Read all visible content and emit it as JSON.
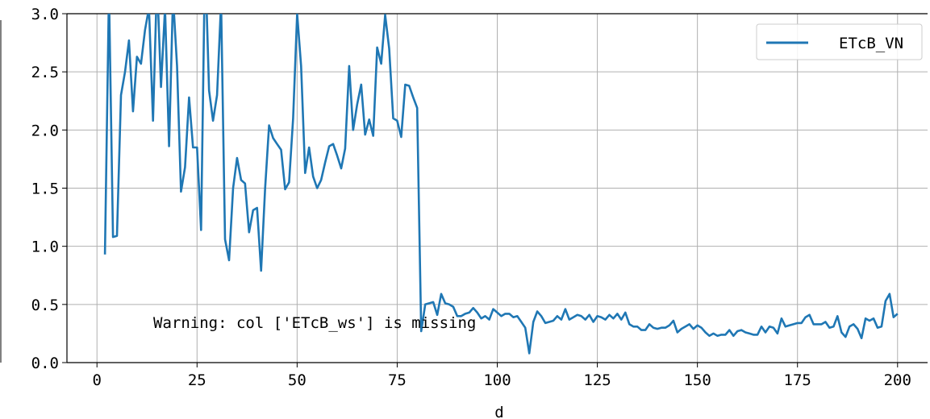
{
  "chart_data": {
    "type": "line",
    "title": "",
    "xlabel": "d",
    "ylabel": "",
    "xlim": [
      -7.5,
      207.5
    ],
    "ylim": [
      0,
      3.0
    ],
    "x_ticks": [
      0,
      25,
      50,
      75,
      100,
      125,
      150,
      175,
      200
    ],
    "x_tick_labels": [
      "0",
      "25",
      "50",
      "75",
      "100",
      "125",
      "150",
      "175",
      "200"
    ],
    "y_ticks": [
      0.0,
      0.5,
      1.0,
      1.5,
      2.0,
      2.5,
      3.0
    ],
    "y_tick_labels": [
      "0.0",
      "0.5",
      "1.0",
      "1.5",
      "2.0",
      "2.5",
      "3.0"
    ],
    "grid": true,
    "legend_position": "top-right",
    "annotation": "Warning: col ['ETcB_ws'] is missing",
    "series": [
      {
        "name": "ETcB_VN",
        "color": "#1f77b4",
        "x": [
          2,
          3,
          4,
          5,
          6,
          7,
          8,
          9,
          10,
          11,
          12,
          13,
          14,
          15,
          16,
          17,
          18,
          19,
          20,
          21,
          22,
          23,
          24,
          25,
          26,
          27,
          28,
          29,
          30,
          31,
          32,
          33,
          34,
          35,
          36,
          37,
          38,
          39,
          40,
          41,
          42,
          43,
          44,
          45,
          46,
          47,
          48,
          49,
          50,
          51,
          52,
          53,
          54,
          55,
          56,
          57,
          58,
          59,
          60,
          61,
          62,
          63,
          64,
          65,
          66,
          67,
          68,
          69,
          70,
          71,
          72,
          73,
          74,
          75,
          76,
          77,
          78,
          79,
          80,
          81,
          82,
          83,
          84,
          85,
          86,
          87,
          88,
          89,
          90,
          91,
          92,
          93,
          94,
          95,
          96,
          97,
          98,
          99,
          100,
          101,
          102,
          103,
          104,
          105,
          106,
          107,
          108,
          109,
          110,
          111,
          112,
          113,
          114,
          115,
          116,
          117,
          118,
          119,
          120,
          121,
          122,
          123,
          124,
          125,
          126,
          127,
          128,
          129,
          130,
          131,
          132,
          133,
          134,
          135,
          136,
          137,
          138,
          139,
          140,
          141,
          142,
          143,
          144,
          145,
          146,
          147,
          148,
          149,
          150,
          151,
          152,
          153,
          154,
          155,
          156,
          157,
          158,
          159,
          160,
          161,
          162,
          163,
          164,
          165,
          166,
          167,
          168,
          169,
          170,
          171,
          172,
          173,
          174,
          175,
          176,
          177,
          178,
          179,
          180,
          181,
          182,
          183,
          184,
          185,
          186,
          187,
          188,
          189,
          190,
          191,
          192,
          193,
          194,
          195,
          196,
          197,
          198,
          199,
          200
        ],
        "values": [
          0.93,
          3.2,
          1.08,
          1.09,
          2.3,
          2.5,
          2.77,
          2.16,
          2.63,
          2.57,
          2.86,
          3.05,
          2.08,
          3.3,
          2.37,
          3.05,
          1.86,
          3.15,
          2.55,
          1.47,
          1.68,
          2.28,
          1.85,
          1.85,
          1.14,
          3.5,
          2.34,
          2.08,
          2.3,
          3.1,
          1.06,
          0.88,
          1.5,
          1.76,
          1.57,
          1.54,
          1.12,
          1.31,
          1.33,
          0.79,
          1.5,
          2.04,
          1.93,
          1.88,
          1.83,
          1.49,
          1.55,
          2.1,
          3.0,
          2.55,
          1.63,
          1.85,
          1.6,
          1.5,
          1.57,
          1.72,
          1.86,
          1.88,
          1.78,
          1.67,
          1.84,
          2.55,
          2.0,
          2.22,
          2.39,
          1.96,
          2.09,
          1.95,
          2.71,
          2.57,
          2.99,
          2.7,
          2.1,
          2.08,
          1.94,
          2.39,
          2.38,
          2.28,
          2.19,
          0.27,
          0.5,
          0.51,
          0.52,
          0.41,
          0.59,
          0.51,
          0.5,
          0.48,
          0.4,
          0.4,
          0.42,
          0.43,
          0.47,
          0.43,
          0.38,
          0.4,
          0.37,
          0.46,
          0.43,
          0.4,
          0.42,
          0.42,
          0.39,
          0.4,
          0.35,
          0.3,
          0.08,
          0.35,
          0.44,
          0.4,
          0.34,
          0.35,
          0.36,
          0.4,
          0.37,
          0.46,
          0.37,
          0.39,
          0.41,
          0.4,
          0.37,
          0.41,
          0.35,
          0.4,
          0.39,
          0.37,
          0.41,
          0.38,
          0.42,
          0.37,
          0.43,
          0.33,
          0.31,
          0.31,
          0.28,
          0.28,
          0.33,
          0.3,
          0.29,
          0.3,
          0.3,
          0.32,
          0.36,
          0.26,
          0.29,
          0.31,
          0.33,
          0.29,
          0.32,
          0.3,
          0.26,
          0.23,
          0.25,
          0.23,
          0.24,
          0.24,
          0.28,
          0.23,
          0.27,
          0.28,
          0.26,
          0.25,
          0.24,
          0.24,
          0.31,
          0.26,
          0.31,
          0.3,
          0.25,
          0.38,
          0.31,
          0.32,
          0.33,
          0.34,
          0.34,
          0.39,
          0.41,
          0.33,
          0.33,
          0.33,
          0.35,
          0.3,
          0.31,
          0.4,
          0.26,
          0.22,
          0.31,
          0.33,
          0.29,
          0.21,
          0.38,
          0.36,
          0.38,
          0.3,
          0.31,
          0.53,
          0.59,
          0.39,
          0.42
        ]
      }
    ]
  }
}
